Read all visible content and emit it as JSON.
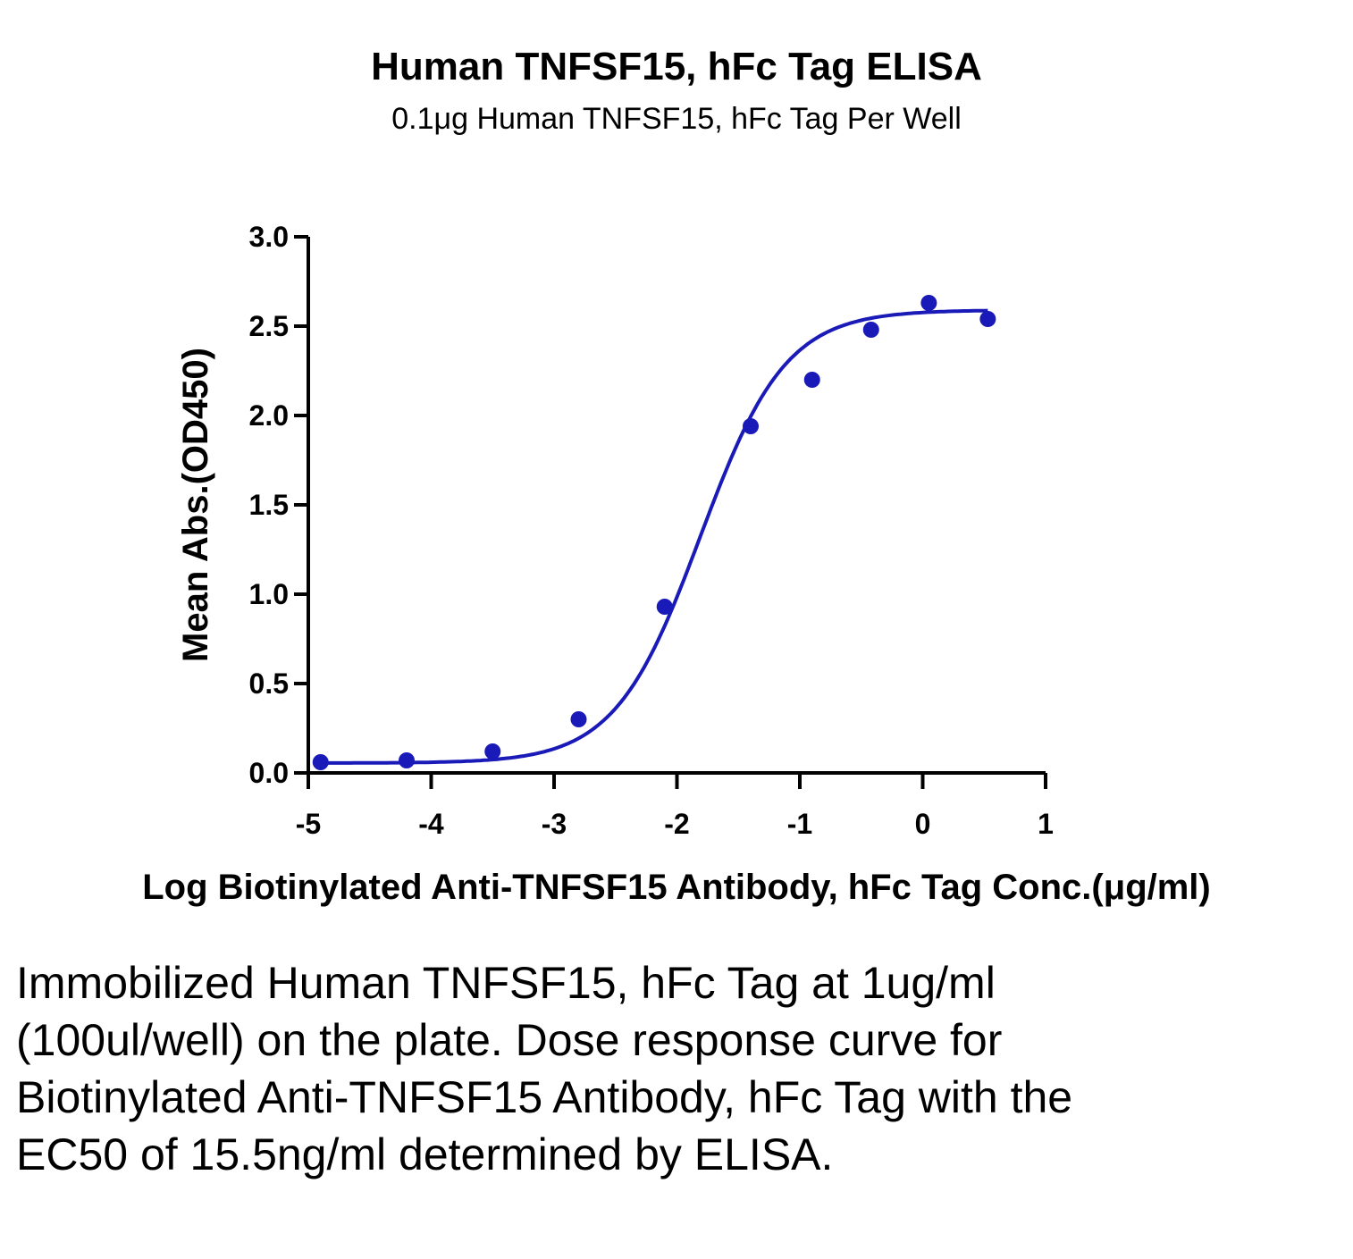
{
  "chart_data": {
    "type": "scatter",
    "title": "Human TNFSF15, hFc Tag ELISA",
    "subtitle": "0.1μg Human TNFSF15, hFc Tag Per Well",
    "xlabel": "Log Biotinylated Anti-TNFSF15 Antibody, hFc Tag Conc.(μg/ml)",
    "ylabel": "Mean Abs.(OD450)",
    "xlim": [
      -5,
      1
    ],
    "ylim": [
      0,
      3.0
    ],
    "x_ticks": [
      "-5",
      "-4",
      "-3",
      "-2",
      "-1",
      "0",
      "1"
    ],
    "y_ticks": [
      "0.0",
      "0.5",
      "1.0",
      "1.5",
      "2.0",
      "2.5",
      "3.0"
    ],
    "grid": false,
    "color": "#1a1ab8",
    "series": [
      {
        "x": [
          -4.9,
          -4.2,
          -3.5,
          -2.8,
          -2.1,
          -1.4,
          -0.9,
          -0.42,
          0.05,
          0.53
        ],
        "y": [
          0.06,
          0.07,
          0.12,
          0.3,
          0.93,
          1.94,
          2.2,
          2.48,
          2.63,
          2.54
        ]
      }
    ],
    "fit": {
      "model": "4PL",
      "bottom": 0.055,
      "top": 2.59,
      "log_ec50": -1.81,
      "hill": 1.25
    }
  },
  "caption": "Immobilized Human TNFSF15, hFc Tag at 1ug/ml (100ul/well) on the plate. Dose response curve for Biotinylated Anti-TNFSF15 Antibody, hFc Tag with the EC50 of 15.5ng/ml determined by ELISA."
}
